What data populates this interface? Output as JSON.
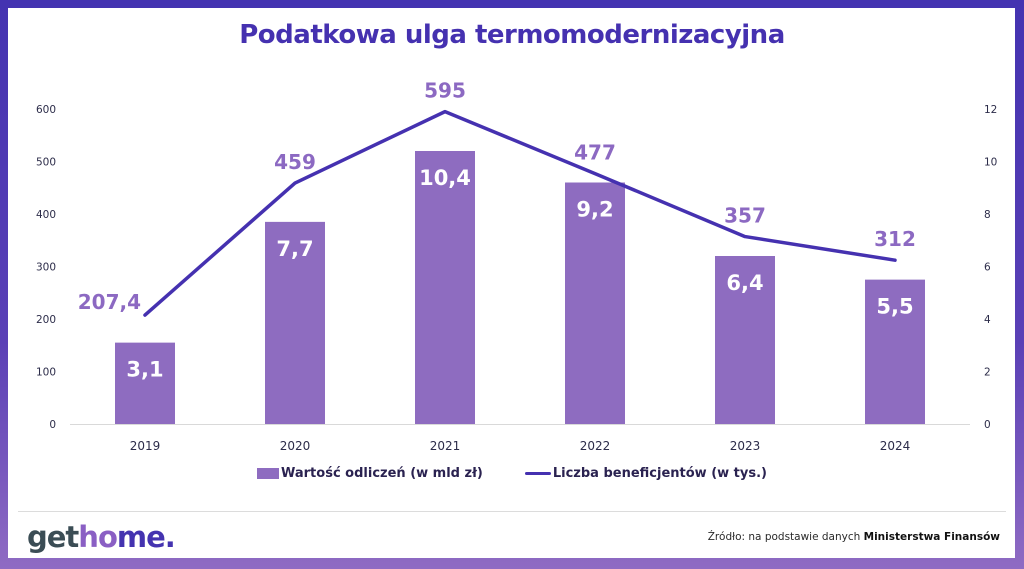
{
  "colors": {
    "frame": "#4433b1",
    "bar": "#8e6cc0",
    "line": "#4531b0",
    "line_label": "#8c69c2",
    "title": "#4531b0"
  },
  "chart_data": {
    "type": "bar+line",
    "title": "Podatkowa ulga termomodernizacyjna",
    "categories": [
      "2019",
      "2020",
      "2021",
      "2022",
      "2023",
      "2024"
    ],
    "series": [
      {
        "name": "Wartość odliczeń (w mld zł)",
        "type": "bar",
        "axis": "right",
        "values": [
          3.1,
          7.7,
          10.4,
          9.2,
          6.4,
          5.5
        ],
        "labels": [
          "3,1",
          "7,7",
          "10,4",
          "9,2",
          "6,4",
          "5,5"
        ]
      },
      {
        "name": "Liczba beneficjentów (w tys.)",
        "type": "line",
        "axis": "left",
        "values": [
          207.4,
          459,
          595,
          477,
          357,
          312
        ],
        "labels": [
          "207,4",
          "459",
          "595",
          "477",
          "357",
          "312"
        ]
      }
    ],
    "left_axis": {
      "ylim": [
        0,
        600
      ],
      "ticks": [
        "0",
        "100",
        "200",
        "300",
        "400",
        "500",
        "600"
      ]
    },
    "right_axis": {
      "ylim": [
        0,
        12
      ],
      "ticks": [
        "0",
        "2",
        "4",
        "6",
        "8",
        "10",
        "12"
      ]
    },
    "legend_position": "bottom",
    "grid": false
  },
  "legend": {
    "bar_label": "Wartość odliczeń (w mld zł)",
    "line_label": "Liczba beneficjentów (w tys.)"
  },
  "footer": {
    "logo_part1": "get",
    "logo_part2": "ho",
    "logo_part3": "me.",
    "source_prefix": "Źródło: na podstawie danych ",
    "source_bold": "Ministerstwa Finansów"
  }
}
